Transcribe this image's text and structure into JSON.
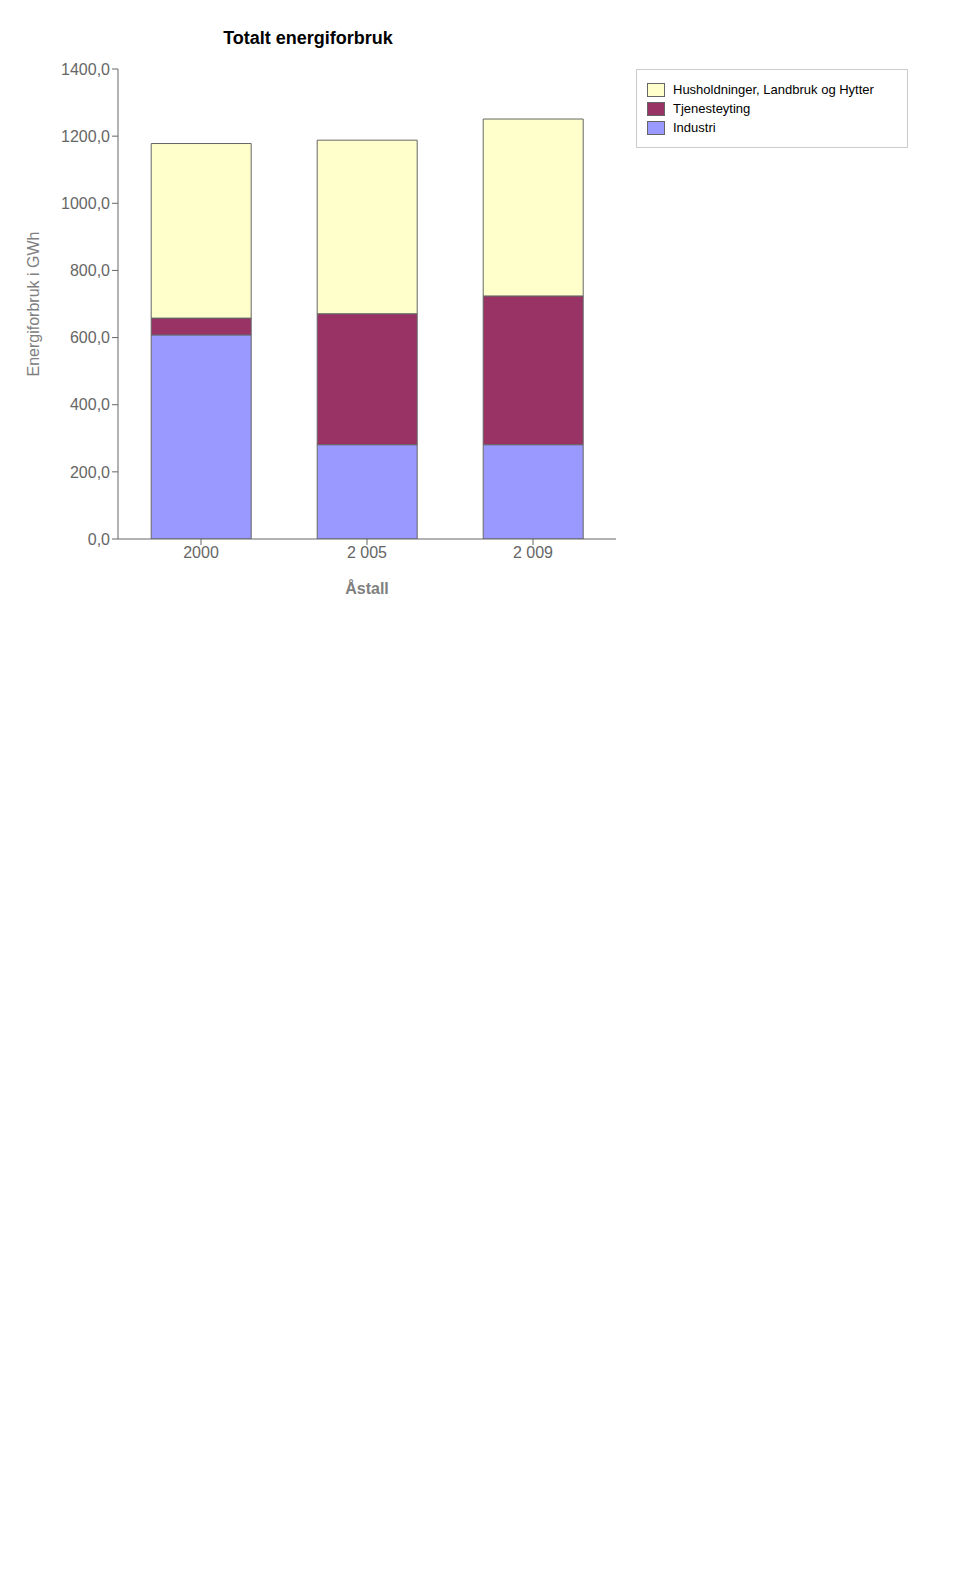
{
  "chart_data": {
    "type": "bar",
    "title": "Totalt energiforbruk",
    "x_label": "Åstall",
    "y_label": "Energiforbruk i GWh",
    "categories": [
      "2000",
      "2 005",
      "2 009"
    ],
    "series": [
      {
        "name": "Industri",
        "color": "#9999FF",
        "values": [
          608,
          281,
          281
        ]
      },
      {
        "name": "Tjenesteyting",
        "color": "#993366",
        "values": [
          50,
          390,
          443
        ]
      },
      {
        "name": "Husholdninger, Landbruk og Hytter",
        "color": "#FFFFCC",
        "values": [
          520,
          517,
          527
        ]
      }
    ],
    "stacked": true,
    "ylim": [
      0,
      1400
    ],
    "yticks": [
      {
        "value": 0,
        "label": "0,0"
      },
      {
        "value": 200,
        "label": "200,0"
      },
      {
        "value": 400,
        "label": "400,0"
      },
      {
        "value": 600,
        "label": "600,0"
      },
      {
        "value": 800,
        "label": "800,0"
      },
      {
        "value": 1000,
        "label": "1000,0"
      },
      {
        "value": 1200,
        "label": "1200,0"
      },
      {
        "value": 1400,
        "label": "1400,0"
      }
    ],
    "grid": false,
    "legend": "upper right"
  }
}
